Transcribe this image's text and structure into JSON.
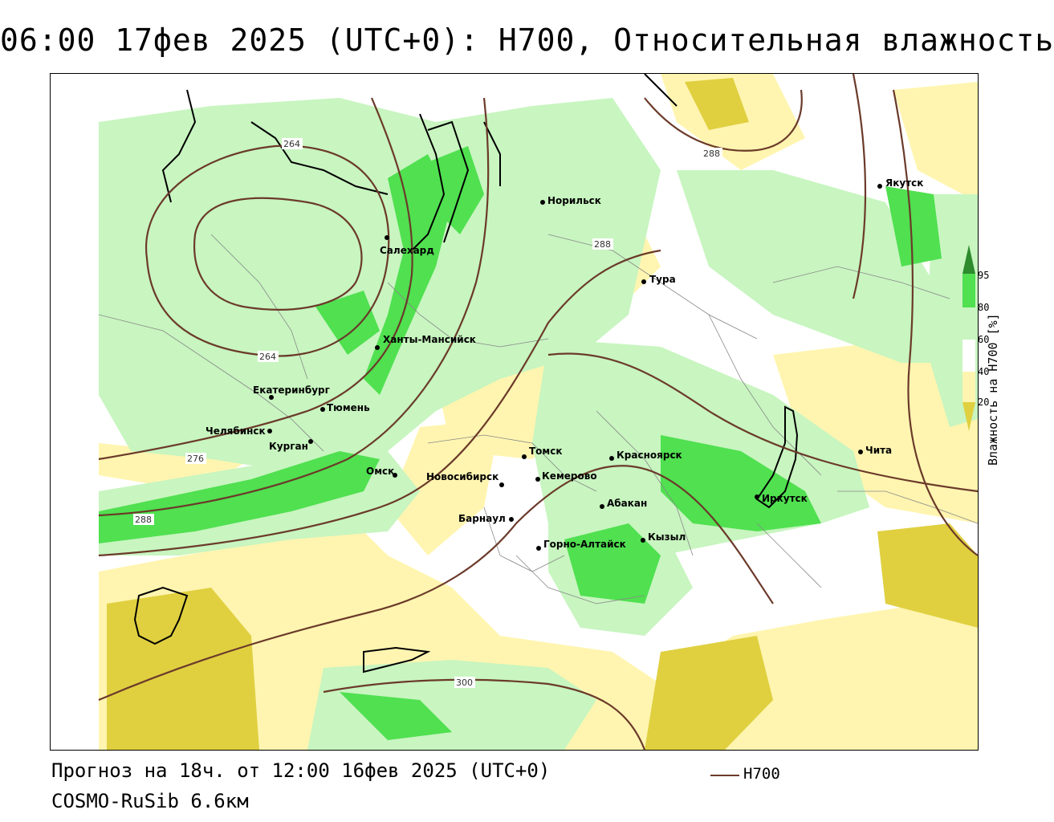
{
  "title": "06:00 17фев 2025 (UTC+0): H700, Относительная влажность",
  "footer": {
    "forecast": "Прогноз на 18ч. от 12:00 16фев 2025 (UTC+0)",
    "model": "COSMO-RuSib 6.6км",
    "legend_label": "H700"
  },
  "colorbar": {
    "title": "Влажность на H700 [%]",
    "ticks": [
      "95",
      "80",
      "60",
      "40",
      "20"
    ],
    "colors": {
      "c95": "#2e8b2e",
      "c80": "#50e050",
      "c60": "#c8f5c0",
      "c40": "#ffffff",
      "c20_40": "#fff5b0",
      "c0_20": "#e0d040"
    }
  },
  "contours": [
    "264",
    "264",
    "276",
    "288",
    "288",
    "288",
    "300"
  ],
  "cities": [
    {
      "name": "Салехард"
    },
    {
      "name": "Норильск"
    },
    {
      "name": "Тура"
    },
    {
      "name": "Якутск"
    },
    {
      "name": "Ханты-Мансийск"
    },
    {
      "name": "Екатеринбург"
    },
    {
      "name": "Тюмень"
    },
    {
      "name": "Челябинск"
    },
    {
      "name": "Курган"
    },
    {
      "name": "Омск"
    },
    {
      "name": "Новосибирск"
    },
    {
      "name": "Томск"
    },
    {
      "name": "Кемерово"
    },
    {
      "name": "Красноярск"
    },
    {
      "name": "Абакан"
    },
    {
      "name": "Барнаул"
    },
    {
      "name": "Горно-Алтайск"
    },
    {
      "name": "Кызыл"
    },
    {
      "name": "Иркутск"
    },
    {
      "name": "Чита"
    }
  ]
}
